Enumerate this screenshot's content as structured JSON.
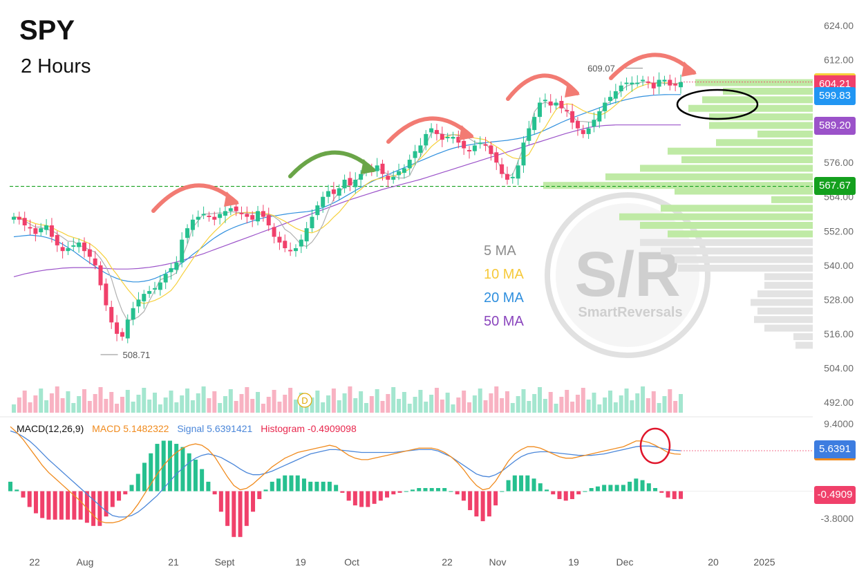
{
  "header": {
    "symbol": "SPY",
    "timeframe": "2 Hours"
  },
  "colors": {
    "up": "#26c08f",
    "down": "#f0406a",
    "ma5": "#b0b0b0",
    "ma10": "#f6d03a",
    "ma20": "#2f8fde",
    "ma50": "#9b52c9",
    "macd": "#f08a1c",
    "signal": "#4a86d9",
    "hist_pos": "#26c08f",
    "hist_neg": "#f0406a",
    "vp_green": "#bfeaa5",
    "vp_gray": "#e3e3e3",
    "arrow_red": "#f27b73",
    "arrow_green": "#6aa548",
    "level": "#14a01e"
  },
  "ma_legend": [
    {
      "label": "5 MA",
      "color": "#8c8c8c"
    },
    {
      "label": "10 MA",
      "color": "#f6c93a"
    },
    {
      "label": "20 MA",
      "color": "#2f8fde"
    },
    {
      "label": "50 MA",
      "color": "#8a45bd"
    }
  ],
  "macd_legend": {
    "name": "MACD(12,26,9)",
    "macd": "MACD 5.1482322",
    "signal": "Signal 5.6391421",
    "histogram": "Histogram -0.4909098"
  },
  "badges": {
    "price": "604.21",
    "ma20": "599.83",
    "ma50": "589.20",
    "level": "567.67",
    "macd_signal": "5.6391",
    "macd_hist": "-0.4909"
  },
  "annotations": {
    "high": "609.07",
    "low": "508.71",
    "dividend": "D"
  },
  "watermark": {
    "text": "S/R",
    "brand": "SmartReversals"
  },
  "chart_data": {
    "type": "candlestick",
    "symbol": "SPY",
    "interval": "2 Hours",
    "y_ticks": [
      "624.00",
      "612.00",
      "600.00",
      "588.00",
      "576.00",
      "564.00",
      "552.00",
      "540.00",
      "528.00",
      "516.00",
      "504.00",
      "492.00"
    ],
    "macd_ticks": [
      "9.4000",
      "-3.8000"
    ],
    "x_labels": [
      "22",
      "Aug",
      "21",
      "Sept",
      "19",
      "Oct",
      "22",
      "Nov",
      "19",
      "Dec",
      "20",
      "2025"
    ],
    "horizontal_level": 567.67,
    "last_price": 604.21,
    "ma_last": {
      "ma20": 599.83,
      "ma50": 589.2
    },
    "high_label": 609.07,
    "low_label": 508.71,
    "closes": [
      557,
      556,
      554,
      553,
      551,
      553,
      554,
      550,
      547,
      545,
      546,
      547,
      548,
      545,
      543,
      540,
      533,
      526,
      520,
      516,
      515,
      521,
      525,
      528,
      530,
      531,
      532,
      534,
      537,
      539,
      541,
      549,
      553,
      556,
      557,
      558,
      557,
      556,
      558,
      559,
      560,
      559,
      558,
      557,
      556,
      559,
      557,
      554,
      550,
      548,
      546,
      545,
      546,
      549,
      553,
      557,
      561,
      564,
      566,
      565,
      567,
      570,
      568,
      570,
      572,
      574,
      573,
      575,
      572,
      570,
      571,
      573,
      574,
      577,
      580,
      582,
      586,
      588,
      586,
      584,
      585,
      585,
      583,
      581,
      580,
      582,
      583,
      582,
      579,
      576,
      572,
      570,
      571,
      575,
      583,
      588,
      592,
      597,
      598,
      596,
      597,
      595,
      594,
      590,
      588,
      586,
      588,
      591,
      594,
      597,
      599,
      601,
      603,
      604,
      604,
      604,
      605,
      604,
      602,
      605,
      605,
      603,
      603,
      604.2
    ],
    "ma5": [
      557,
      556.5,
      555.6,
      554.4,
      553.4,
      553.4,
      552.6,
      552.2,
      551,
      549.8,
      548.4,
      548.4,
      547,
      546.4,
      545.4,
      544.6,
      542.4,
      539.4,
      535.4,
      529,
      524,
      520.6,
      521,
      522,
      523.8,
      527.6,
      531.2,
      535,
      535.6,
      536.2,
      537.4,
      542.6,
      547.4,
      553.2,
      555.6,
      558,
      558,
      558.2,
      558.4,
      558.2,
      558.8,
      558.6,
      558.4,
      558.2,
      558.2,
      558.2,
      557.6,
      557.8,
      557,
      555.6,
      552.6,
      551.4,
      549.4,
      547.2,
      546.6,
      548.2,
      550.8,
      554.4,
      559.2,
      563.2,
      565.6,
      567.6,
      568.2,
      569.6,
      570.8,
      572.8,
      572.8,
      574.4,
      572.8,
      572,
      571.4,
      570.6,
      570.6,
      571.4,
      575.2,
      578.2,
      582.2,
      586.4,
      586.4,
      586,
      585.6,
      585.8,
      585.4,
      585.6,
      584.4,
      583.2,
      582.6,
      582.6,
      580.4,
      577.6,
      573.2,
      571.2,
      571.8,
      576.4,
      581.4,
      586.6,
      593.8,
      596.2,
      597.2,
      596.4,
      596.6,
      596.4,
      594,
      592.2,
      590.4,
      590.4,
      590.2,
      590.2,
      592.2,
      596,
      597.4,
      599,
      601.2,
      602.8,
      603.4,
      603.8,
      604.2,
      604.2,
      603.8,
      604.2,
      603.6,
      603.8,
      603.6,
      604
    ],
    "ma10": [
      557,
      556.8,
      556,
      555.3,
      554.6,
      554.2,
      554,
      553.3,
      552.2,
      551.4,
      550.4,
      549.8,
      549.2,
      548.4,
      547.6,
      546.2,
      544.4,
      542.3,
      539.2,
      536.8,
      534.2,
      531.6,
      529.4,
      527.2,
      526.6,
      527.1,
      527.7,
      528.6,
      529.8,
      531.2,
      533.6,
      536.6,
      539.4,
      542.2,
      544.9,
      547.4,
      549.8,
      551.8,
      553.6,
      555.6,
      557.2,
      558.2,
      558.4,
      558.6,
      558.4,
      558.6,
      558.2,
      558,
      557.4,
      556.4,
      555.4,
      554.2,
      553,
      552.2,
      551.6,
      551.4,
      552.1,
      553.3,
      554.9,
      556.9,
      558.6,
      560.9,
      563.2,
      565.2,
      566.6,
      568.4,
      569.6,
      570.2,
      570.6,
      570.8,
      571.3,
      571.9,
      572.7,
      573.8,
      575.8,
      577.4,
      579.4,
      581.6,
      583.2,
      584.6,
      585.2,
      585.8,
      585.7,
      585.3,
      585,
      584.6,
      584.3,
      584,
      582.8,
      581.6,
      580.4,
      578.7,
      577.7,
      577.3,
      577.8,
      578.9,
      582.2,
      586.1,
      588.4,
      591.6,
      594.6,
      596,
      596.6,
      596.4,
      595.3,
      594.2,
      593.4,
      593,
      592.6,
      593.3,
      594.6,
      596.2,
      597.8,
      599.6,
      601.1,
      602.3,
      603,
      603.6,
      603.8,
      603.8,
      604,
      603.8,
      603.7,
      603.9
    ],
    "ma20": [
      550,
      550.2,
      550.4,
      550.6,
      550.4,
      550.2,
      549.8,
      549.2,
      548.4,
      547.4,
      546.2,
      545,
      543.6,
      542.2,
      540.9,
      539.6,
      538.3,
      537.2,
      536.2,
      535.4,
      534.8,
      534.4,
      534.2,
      534.2,
      534.4,
      534.8,
      535.4,
      536.2,
      537.1,
      538.2,
      539.4,
      540.8,
      542.2,
      543.8,
      545.2,
      546.7,
      548.2,
      549.6,
      550.8,
      551.9,
      552.8,
      553.6,
      554.3,
      554.9,
      555.5,
      556.1,
      556.6,
      557,
      557.3,
      557.6,
      557.9,
      558.2,
      558.4,
      558.6,
      558.8,
      559.1,
      559.6,
      560.2,
      561,
      561.9,
      562.9,
      564,
      565.1,
      566.2,
      567.3,
      568.3,
      569.3,
      570.2,
      571,
      571.8,
      572.6,
      573.4,
      574.2,
      575,
      575.8,
      576.6,
      577.4,
      578.2,
      579,
      579.7,
      580.4,
      581,
      581.5,
      581.9,
      582.2,
      582.5,
      582.8,
      583,
      583.2,
      583.4,
      583.6,
      583.8,
      584.1,
      584.4,
      584.8,
      585.3,
      585.9,
      586.6,
      587.4,
      588.3,
      589.2,
      590.1,
      590.9,
      591.7,
      592.4,
      593.1,
      593.8,
      594.5,
      595.2,
      595.9,
      596.5,
      597.1,
      597.6,
      598.1,
      598.5,
      598.9,
      599.2,
      599.4,
      599.6,
      599.7,
      599.8,
      599.83,
      599.83,
      599.83
    ],
    "ma50": [
      536,
      536.5,
      537,
      537.4,
      537.8,
      538.1,
      538.4,
      538.6,
      538.8,
      539,
      539.1,
      539.2,
      539.2,
      539.2,
      539.2,
      539.1,
      539,
      538.9,
      538.8,
      538.7,
      538.7,
      538.7,
      538.8,
      538.9,
      539.1,
      539.3,
      539.6,
      539.9,
      540.3,
      540.7,
      541.2,
      541.7,
      542.3,
      542.9,
      543.5,
      544.1,
      544.8,
      545.5,
      546.2,
      546.9,
      547.6,
      548.3,
      549,
      549.7,
      550.4,
      551.1,
      551.8,
      552.5,
      553.2,
      553.9,
      554.6,
      555.3,
      556,
      556.7,
      557.4,
      558.1,
      558.8,
      559.5,
      560.2,
      560.9,
      561.6,
      562.3,
      563,
      563.6,
      564.2,
      564.8,
      565.4,
      566,
      566.6,
      567.1,
      567.6,
      568.1,
      568.6,
      569.1,
      569.6,
      570.1,
      570.7,
      571.3,
      571.9,
      572.5,
      573.1,
      573.7,
      574.3,
      574.9,
      575.5,
      576.1,
      576.7,
      577.3,
      577.9,
      578.5,
      579.1,
      579.7,
      580.3,
      580.9,
      581.5,
      582.1,
      582.7,
      583.3,
      583.9,
      584.5,
      585.1,
      585.7,
      586.3,
      586.8,
      587.3,
      587.8,
      588.3,
      588.6,
      588.8,
      589,
      589.1,
      589.2,
      589.2,
      589.2,
      589.2,
      589.2,
      589.2,
      589.2,
      589.2,
      589.2,
      589.2,
      589.2,
      589.2,
      589.2
    ],
    "macd": [
      9,
      8.2,
      7.2,
      6.0,
      4.8,
      3.6,
      2.6,
      1.8,
      1.0,
      0.2,
      -0.6,
      -1.4,
      -2.4,
      -3.4,
      -4.2,
      -4.4,
      -4.4,
      -4.2,
      -3.8,
      -3.0,
      -1.8,
      -0.4,
      1.0,
      2.4,
      3.6,
      4.6,
      5.4,
      6.0,
      6.4,
      6.6,
      6.4,
      5.8,
      4.8,
      3.4,
      2.0,
      0.8,
      0.2,
      0.4,
      1.0,
      1.8,
      2.6,
      3.4,
      4.0,
      4.6,
      5.0,
      5.4,
      5.6,
      5.8,
      6.0,
      6.2,
      6.4,
      6.2,
      5.6,
      5.0,
      4.6,
      4.4,
      4.4,
      4.6,
      4.8,
      5.0,
      5.2,
      5.4,
      5.6,
      5.8,
      6.0,
      6.0,
      6.0,
      5.8,
      5.4,
      4.8,
      4.0,
      3.0,
      1.8,
      0.8,
      0.2,
      0.4,
      1.4,
      2.8,
      4.2,
      5.2,
      5.8,
      6.2,
      6.2,
      6.0,
      5.6,
      5.2,
      4.8,
      4.6,
      4.6,
      4.8,
      5.0,
      5.2,
      5.4,
      5.6,
      5.8,
      6.0,
      6.2,
      6.6,
      7.0,
      7.0,
      6.8,
      6.4,
      5.9,
      5.4,
      5.2,
      5.15
    ],
    "signal": [
      8.4,
      8.1,
      7.6,
      7.0,
      6.2,
      5.3,
      4.4,
      3.6,
      2.8,
      2.0,
      1.2,
      0.4,
      -0.4,
      -1.2,
      -2.0,
      -2.8,
      -3.4,
      -3.6,
      -3.6,
      -3.4,
      -2.9,
      -2.2,
      -1.4,
      -0.6,
      0.4,
      1.4,
      2.4,
      3.2,
      4.0,
      4.6,
      5.0,
      5.2,
      5.0,
      4.7,
      4.2,
      3.7,
      3.1,
      2.6,
      2.3,
      2.3,
      2.5,
      2.8,
      3.2,
      3.6,
      4.0,
      4.4,
      4.8,
      5.2,
      5.4,
      5.6,
      5.8,
      5.8,
      5.7,
      5.6,
      5.5,
      5.4,
      5.4,
      5.4,
      5.4,
      5.4,
      5.4,
      5.5,
      5.6,
      5.7,
      5.8,
      5.8,
      5.8,
      5.6,
      5.2,
      4.8,
      4.2,
      3.6,
      3.0,
      2.4,
      2.1,
      2.0,
      2.3,
      2.8,
      3.5,
      4.2,
      4.8,
      5.2,
      5.4,
      5.5,
      5.5,
      5.4,
      5.3,
      5.2,
      5.1,
      5.0,
      5.0,
      5.0,
      5.1,
      5.2,
      5.4,
      5.6,
      5.8,
      6.0,
      6.2,
      6.3,
      6.3,
      6.2,
      6.0,
      5.8,
      5.7,
      5.64
    ],
    "histogram_last": -0.4909098,
    "volume_profile_note": "horizontal volume-by-price bars on right side"
  }
}
